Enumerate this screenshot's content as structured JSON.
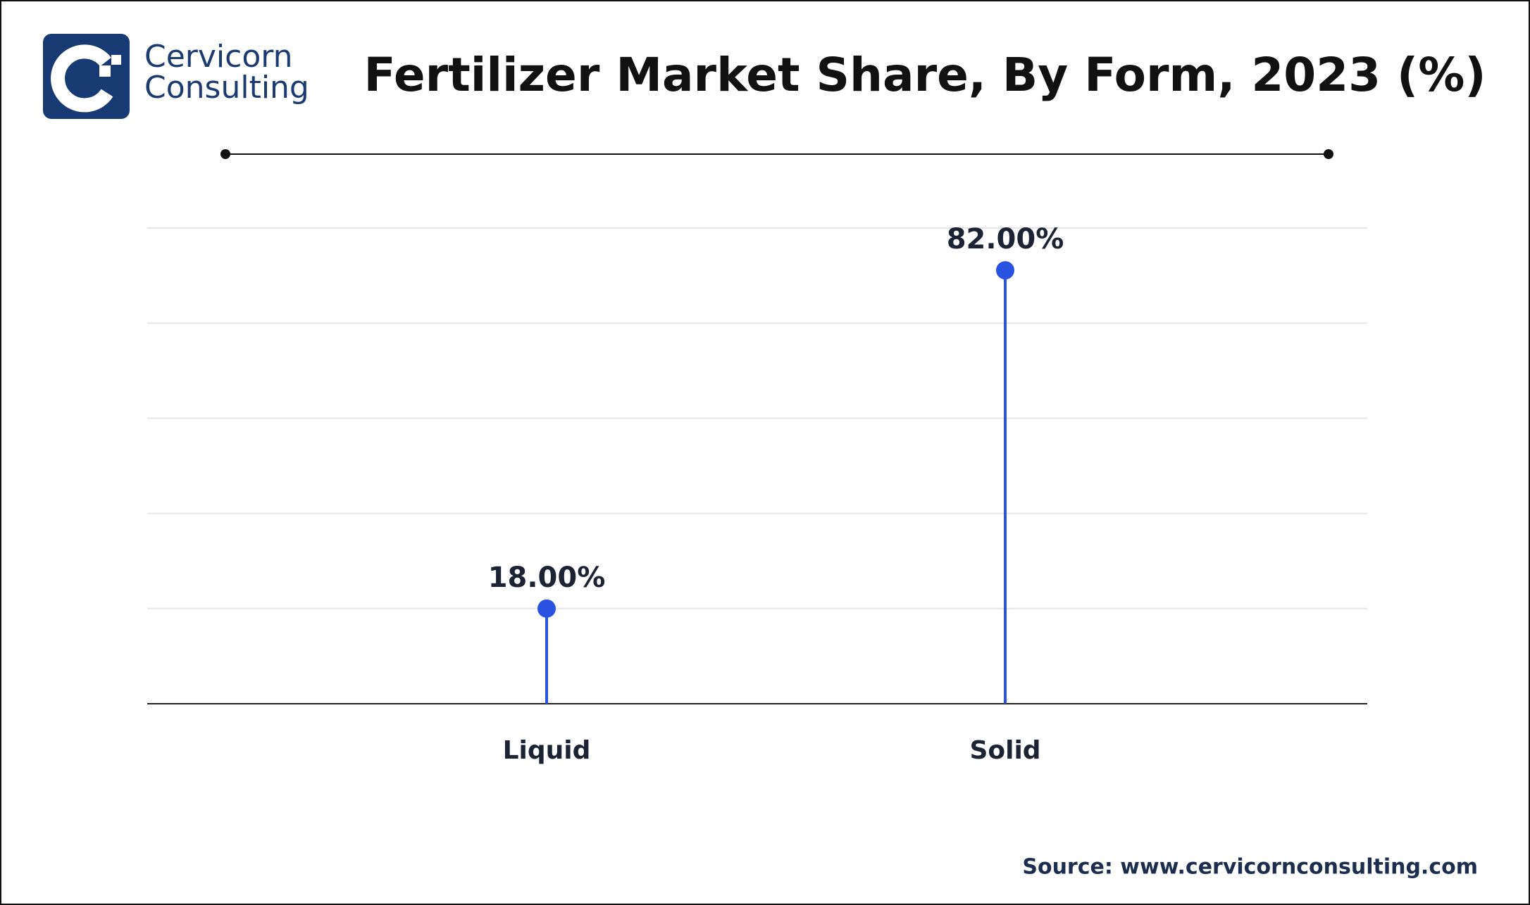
{
  "brand": {
    "line1": "Cervicorn",
    "line2": "Consulting"
  },
  "chart_data": {
    "type": "lollipop",
    "title": "Fertilizer Market Share, By Form, 2023 (%)",
    "categories": [
      "Liquid",
      "Solid"
    ],
    "values": [
      18,
      82
    ],
    "value_labels": [
      "18.00%",
      "82.00%"
    ],
    "color": "#2a52e0",
    "ylim": [
      0,
      90
    ],
    "yticks": [
      0,
      18,
      36,
      54,
      72,
      90
    ],
    "grid": true
  },
  "source": "Source: www.cervicornconsulting.com"
}
